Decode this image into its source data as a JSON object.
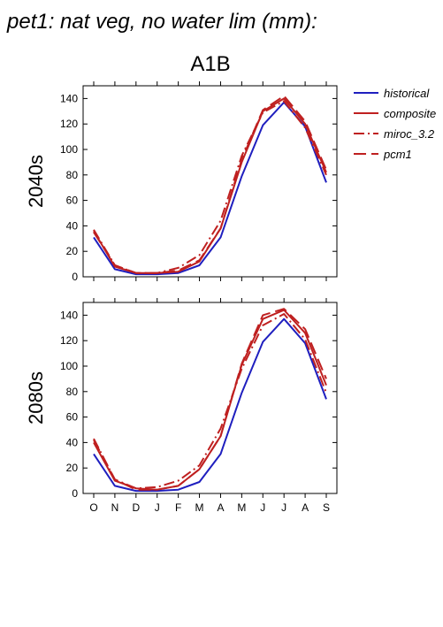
{
  "figure": {
    "title": "pet1: nat veg, no water lim (mm):",
    "scenario": "A1B"
  },
  "legend": [
    {
      "name": "historical",
      "color": "#1f1fbf",
      "dash": "solid"
    },
    {
      "name": "composite",
      "color": "#bf2020",
      "dash": "solid"
    },
    {
      "name": "miroc_3.2",
      "color": "#bf2020",
      "dash": "dashdot"
    },
    {
      "name": "pcm1",
      "color": "#bf2020",
      "dash": "dashed"
    }
  ],
  "chart_data": [
    {
      "type": "line",
      "row_label": "2040s",
      "categories": [
        "O",
        "N",
        "D",
        "J",
        "F",
        "M",
        "A",
        "M",
        "J",
        "J",
        "A",
        "S"
      ],
      "ylim": [
        0,
        150
      ],
      "yticks": [
        0,
        20,
        40,
        60,
        80,
        100,
        120,
        140
      ],
      "show_xtick_labels": false,
      "series": [
        {
          "name": "historical",
          "color": "#1f1fbf",
          "dash": "solid",
          "values": [
            31,
            6,
            2,
            2,
            3,
            9,
            31,
            79,
            119,
            137,
            118,
            74
          ]
        },
        {
          "name": "composite",
          "color": "#bf2020",
          "dash": "solid",
          "values": [
            36,
            8,
            3,
            3,
            4,
            12,
            38,
            90,
            130,
            140,
            120,
            82
          ]
        },
        {
          "name": "miroc_3.2",
          "color": "#bf2020",
          "dash": "dashdot",
          "values": [
            37,
            9,
            3,
            3,
            7,
            17,
            44,
            95,
            129,
            138,
            117,
            80
          ]
        },
        {
          "name": "pcm1",
          "color": "#bf2020",
          "dash": "dashed",
          "values": [
            35,
            9,
            3,
            3,
            5,
            13,
            38,
            92,
            131,
            142,
            122,
            84
          ]
        }
      ]
    },
    {
      "type": "line",
      "row_label": "2080s",
      "categories": [
        "O",
        "N",
        "D",
        "J",
        "F",
        "M",
        "A",
        "M",
        "J",
        "J",
        "A",
        "S"
      ],
      "ylim": [
        0,
        150
      ],
      "yticks": [
        0,
        20,
        40,
        60,
        80,
        100,
        120,
        140
      ],
      "show_xtick_labels": true,
      "series": [
        {
          "name": "historical",
          "color": "#1f1fbf",
          "dash": "solid",
          "values": [
            31,
            6,
            2,
            2,
            3,
            9,
            31,
            79,
            119,
            137,
            118,
            74
          ]
        },
        {
          "name": "composite",
          "color": "#bf2020",
          "dash": "solid",
          "values": [
            40,
            10,
            4,
            3,
            6,
            19,
            45,
            101,
            137,
            144,
            126,
            85
          ]
        },
        {
          "name": "miroc_3.2",
          "color": "#bf2020",
          "dash": "dashdot",
          "values": [
            43,
            11,
            4,
            5,
            10,
            22,
            51,
            98,
            132,
            141,
            121,
            79
          ]
        },
        {
          "name": "pcm1",
          "color": "#bf2020",
          "dash": "dashed",
          "values": [
            42,
            11,
            3,
            3,
            6,
            19,
            45,
            102,
            140,
            145,
            129,
            90
          ]
        }
      ]
    }
  ]
}
